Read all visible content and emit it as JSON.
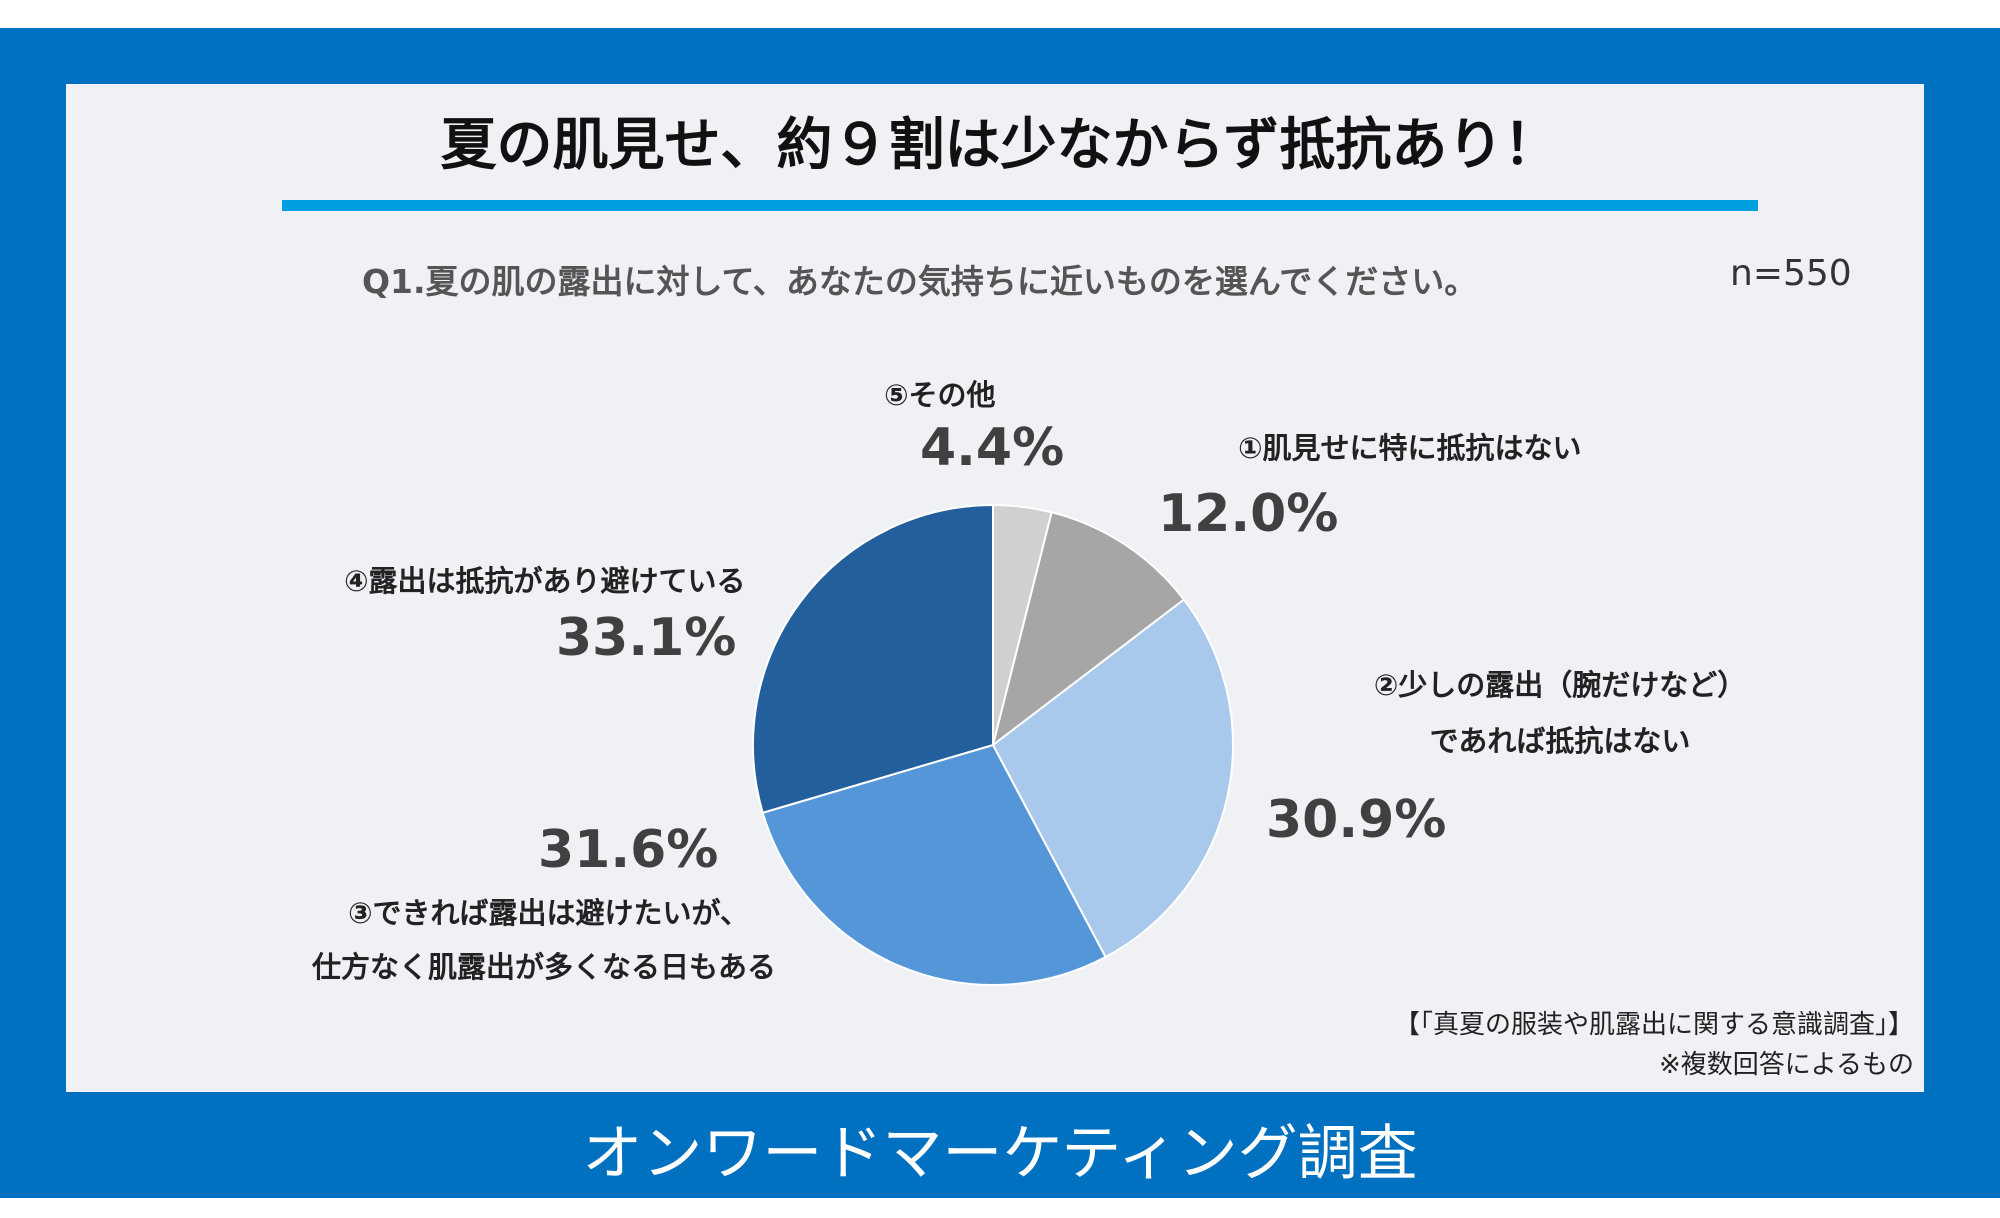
{
  "title": "夏の肌見せ、約９割は少なからず抵抗あり！",
  "question": "Q1.夏の肌の露出に対して、あなたの気持ちに近いものを選んでください。",
  "sample_size": "n=550",
  "source_line1": "【「真夏の服装や肌露出に関する意識調査」】",
  "source_line2": "※複数回答によるもの",
  "footer": "オンワードマーケティング調査",
  "colors": {
    "frame": "#0070c0",
    "rule": "#00a0e0",
    "slice1": "#a6a6a6",
    "slice2": "#a8c9ec",
    "slice3": "#5596d8",
    "slice4": "#225f9c",
    "slice5": "#d0d0d0"
  },
  "chart_data": {
    "type": "pie",
    "slices": [
      {
        "label_line1": "①肌見せに特に抵抗はない",
        "label_line2": "",
        "value": 12.0,
        "value_label": "12.0%"
      },
      {
        "label_line1": "②少しの露出（腕だけなど）",
        "label_line2": "であれば抵抗はない",
        "value": 30.9,
        "value_label": "30.9%"
      },
      {
        "label_line1": "③できれば露出は避けたいが、",
        "label_line2": "仕方なく肌露出が多くなる日もある",
        "value": 31.6,
        "value_label": "31.6%"
      },
      {
        "label_line1": "④露出は抵抗があり避けている",
        "label_line2": "",
        "value": 33.1,
        "value_label": "33.1%"
      },
      {
        "label_line1": "⑤その他",
        "label_line2": "",
        "value": 4.4,
        "value_label": "4.4%"
      }
    ]
  }
}
